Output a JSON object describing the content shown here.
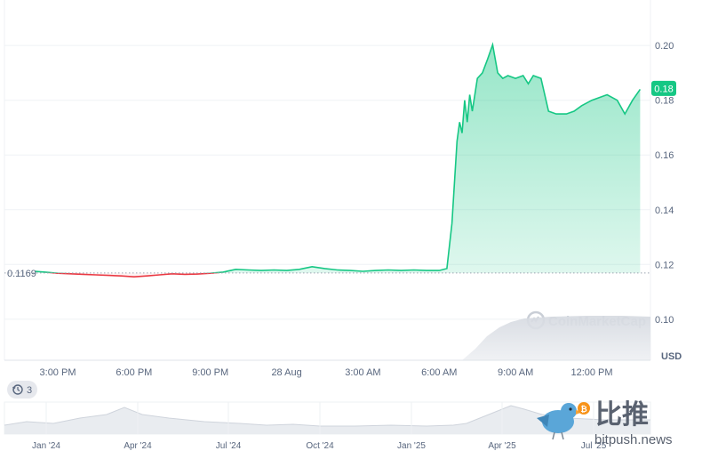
{
  "chart_data": {
    "type": "area",
    "currency_label": "USD",
    "reference_price": "0.1169",
    "current_price_label": "0.18",
    "ylim": [
      0.085,
      0.215
    ],
    "y_ticks": [
      {
        "value": 0.1,
        "label": "0.10"
      },
      {
        "value": 0.12,
        "label": "0.12"
      },
      {
        "value": 0.14,
        "label": "0.14"
      },
      {
        "value": 0.16,
        "label": "0.16"
      },
      {
        "value": 0.18,
        "label": "0.18"
      },
      {
        "value": 0.2,
        "label": "0.20"
      }
    ],
    "x_domain_hours": [
      13.2,
      27.1
    ],
    "x_ticks": [
      {
        "label": "3:00 PM",
        "t": 15
      },
      {
        "label": "6:00 PM",
        "t": 18
      },
      {
        "label": "9:00 PM",
        "t": 21
      },
      {
        "label": "28 Aug",
        "t": 24
      },
      {
        "label": "3:00 AM",
        "t": 27
      },
      {
        "label": "6:00 AM",
        "t": 30
      },
      {
        "label": "9:00 AM",
        "t": 33
      },
      {
        "label": "12:00 PM",
        "t": 36
      }
    ],
    "series": [
      {
        "x": [
          14.1,
          14.5,
          15.0,
          15.5,
          16.0,
          16.5,
          17.0,
          17.5,
          18.0,
          18.5,
          19.0,
          19.5,
          20.0,
          20.5,
          21.0,
          21.5,
          22.0,
          22.5,
          23.0,
          23.5,
          24.0,
          24.5,
          25.0,
          25.5,
          26.0,
          26.5,
          27.0,
          27.5,
          28.0,
          28.5,
          29.0,
          29.5,
          30.0,
          30.3,
          30.5,
          30.7,
          30.8,
          30.9,
          31.0,
          31.1,
          31.2,
          31.3,
          31.5,
          31.7,
          31.9,
          32.1,
          32.3,
          32.5,
          32.7,
          33.0,
          33.3,
          33.5,
          33.7,
          34.0,
          34.3,
          34.6,
          35.0,
          35.3,
          35.6,
          36.0,
          36.3,
          36.6,
          37.0,
          37.3,
          37.6,
          37.9
        ],
        "y": [
          0.1175,
          0.1172,
          0.1168,
          0.1166,
          0.1164,
          0.1162,
          0.116,
          0.1158,
          0.1155,
          0.1158,
          0.1162,
          0.1166,
          0.1164,
          0.1165,
          0.1168,
          0.1172,
          0.1182,
          0.118,
          0.1178,
          0.118,
          0.1178,
          0.1182,
          0.1192,
          0.1185,
          0.118,
          0.1178,
          0.1175,
          0.1178,
          0.118,
          0.1178,
          0.118,
          0.1178,
          0.1178,
          0.1185,
          0.135,
          0.165,
          0.172,
          0.168,
          0.18,
          0.172,
          0.182,
          0.176,
          0.188,
          0.19,
          0.195,
          0.2003,
          0.19,
          0.188,
          0.189,
          0.188,
          0.189,
          0.186,
          0.189,
          0.188,
          0.176,
          0.175,
          0.175,
          0.176,
          0.178,
          0.18,
          0.181,
          0.182,
          0.18,
          0.175,
          0.18,
          0.184
        ]
      }
    ],
    "navigator": {
      "x_ticks": [
        "Jan '24",
        "Apr '24",
        "Jul '24",
        "Oct '24",
        "Jan '25",
        "Apr '25",
        "Jul '25"
      ]
    }
  },
  "events_badge": {
    "count": "3",
    "icon": "history-clock-icon"
  },
  "watermark": {
    "brand": "CoinMarketCap"
  },
  "overlay_logo": {
    "cn_text": "比推",
    "en_text": "bitpush.news"
  },
  "colors": {
    "up": "#16c784",
    "down": "#ea3943",
    "up_fill": "#16c784",
    "down_fill": "#ea3943",
    "grid": "#eff2f5",
    "text": "#58667e",
    "badge_bg": "#e6e8ed"
  }
}
